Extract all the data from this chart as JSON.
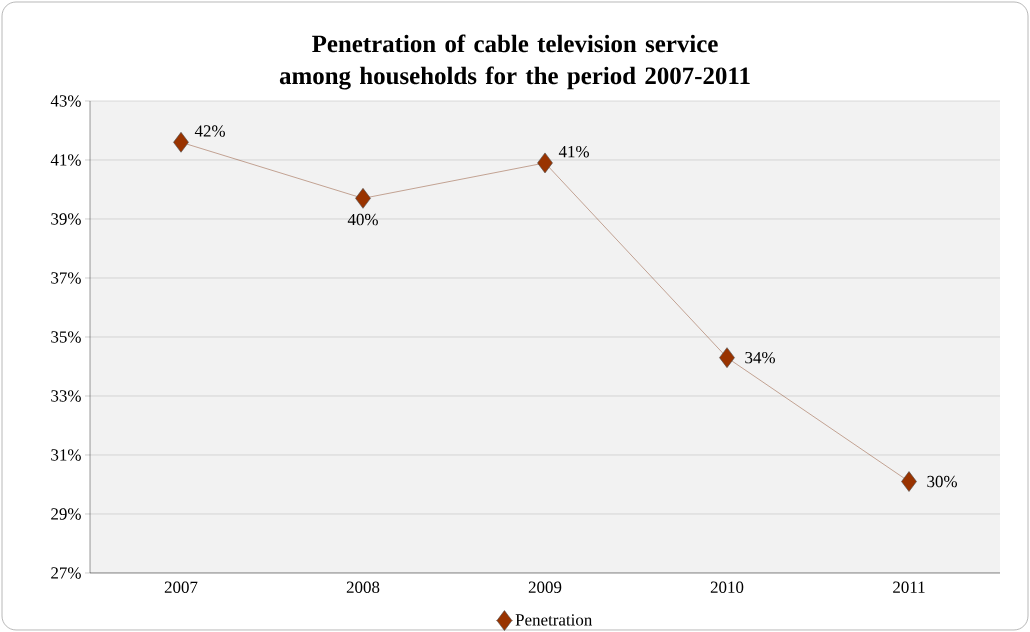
{
  "chart_data": {
    "type": "line",
    "title": "Penetration of cable television service among households for the period 2007-2011",
    "categories": [
      "2007",
      "2008",
      "2009",
      "2010",
      "2011"
    ],
    "series": [
      {
        "name": "Penetration",
        "color": "#993300",
        "values": [
          41.6,
          39.7,
          40.9,
          34.3,
          30.1
        ],
        "value_labels": [
          "42%",
          "40%",
          "41%",
          "34%",
          "30%"
        ]
      }
    ],
    "ylim": [
      27,
      43
    ],
    "yticks": [
      {
        "value": 27,
        "label": "27%"
      },
      {
        "value": 29,
        "label": "29%"
      },
      {
        "value": 31,
        "label": "31%"
      },
      {
        "value": 33,
        "label": "33%"
      },
      {
        "value": 35,
        "label": "35%"
      },
      {
        "value": 37,
        "label": "37%"
      },
      {
        "value": 39,
        "label": "39%"
      },
      {
        "value": 41,
        "label": "41%"
      },
      {
        "value": 43,
        "label": "43%"
      }
    ],
    "grid": "y",
    "legend": "bottom",
    "marker": "diamond",
    "line_style": "solid"
  }
}
